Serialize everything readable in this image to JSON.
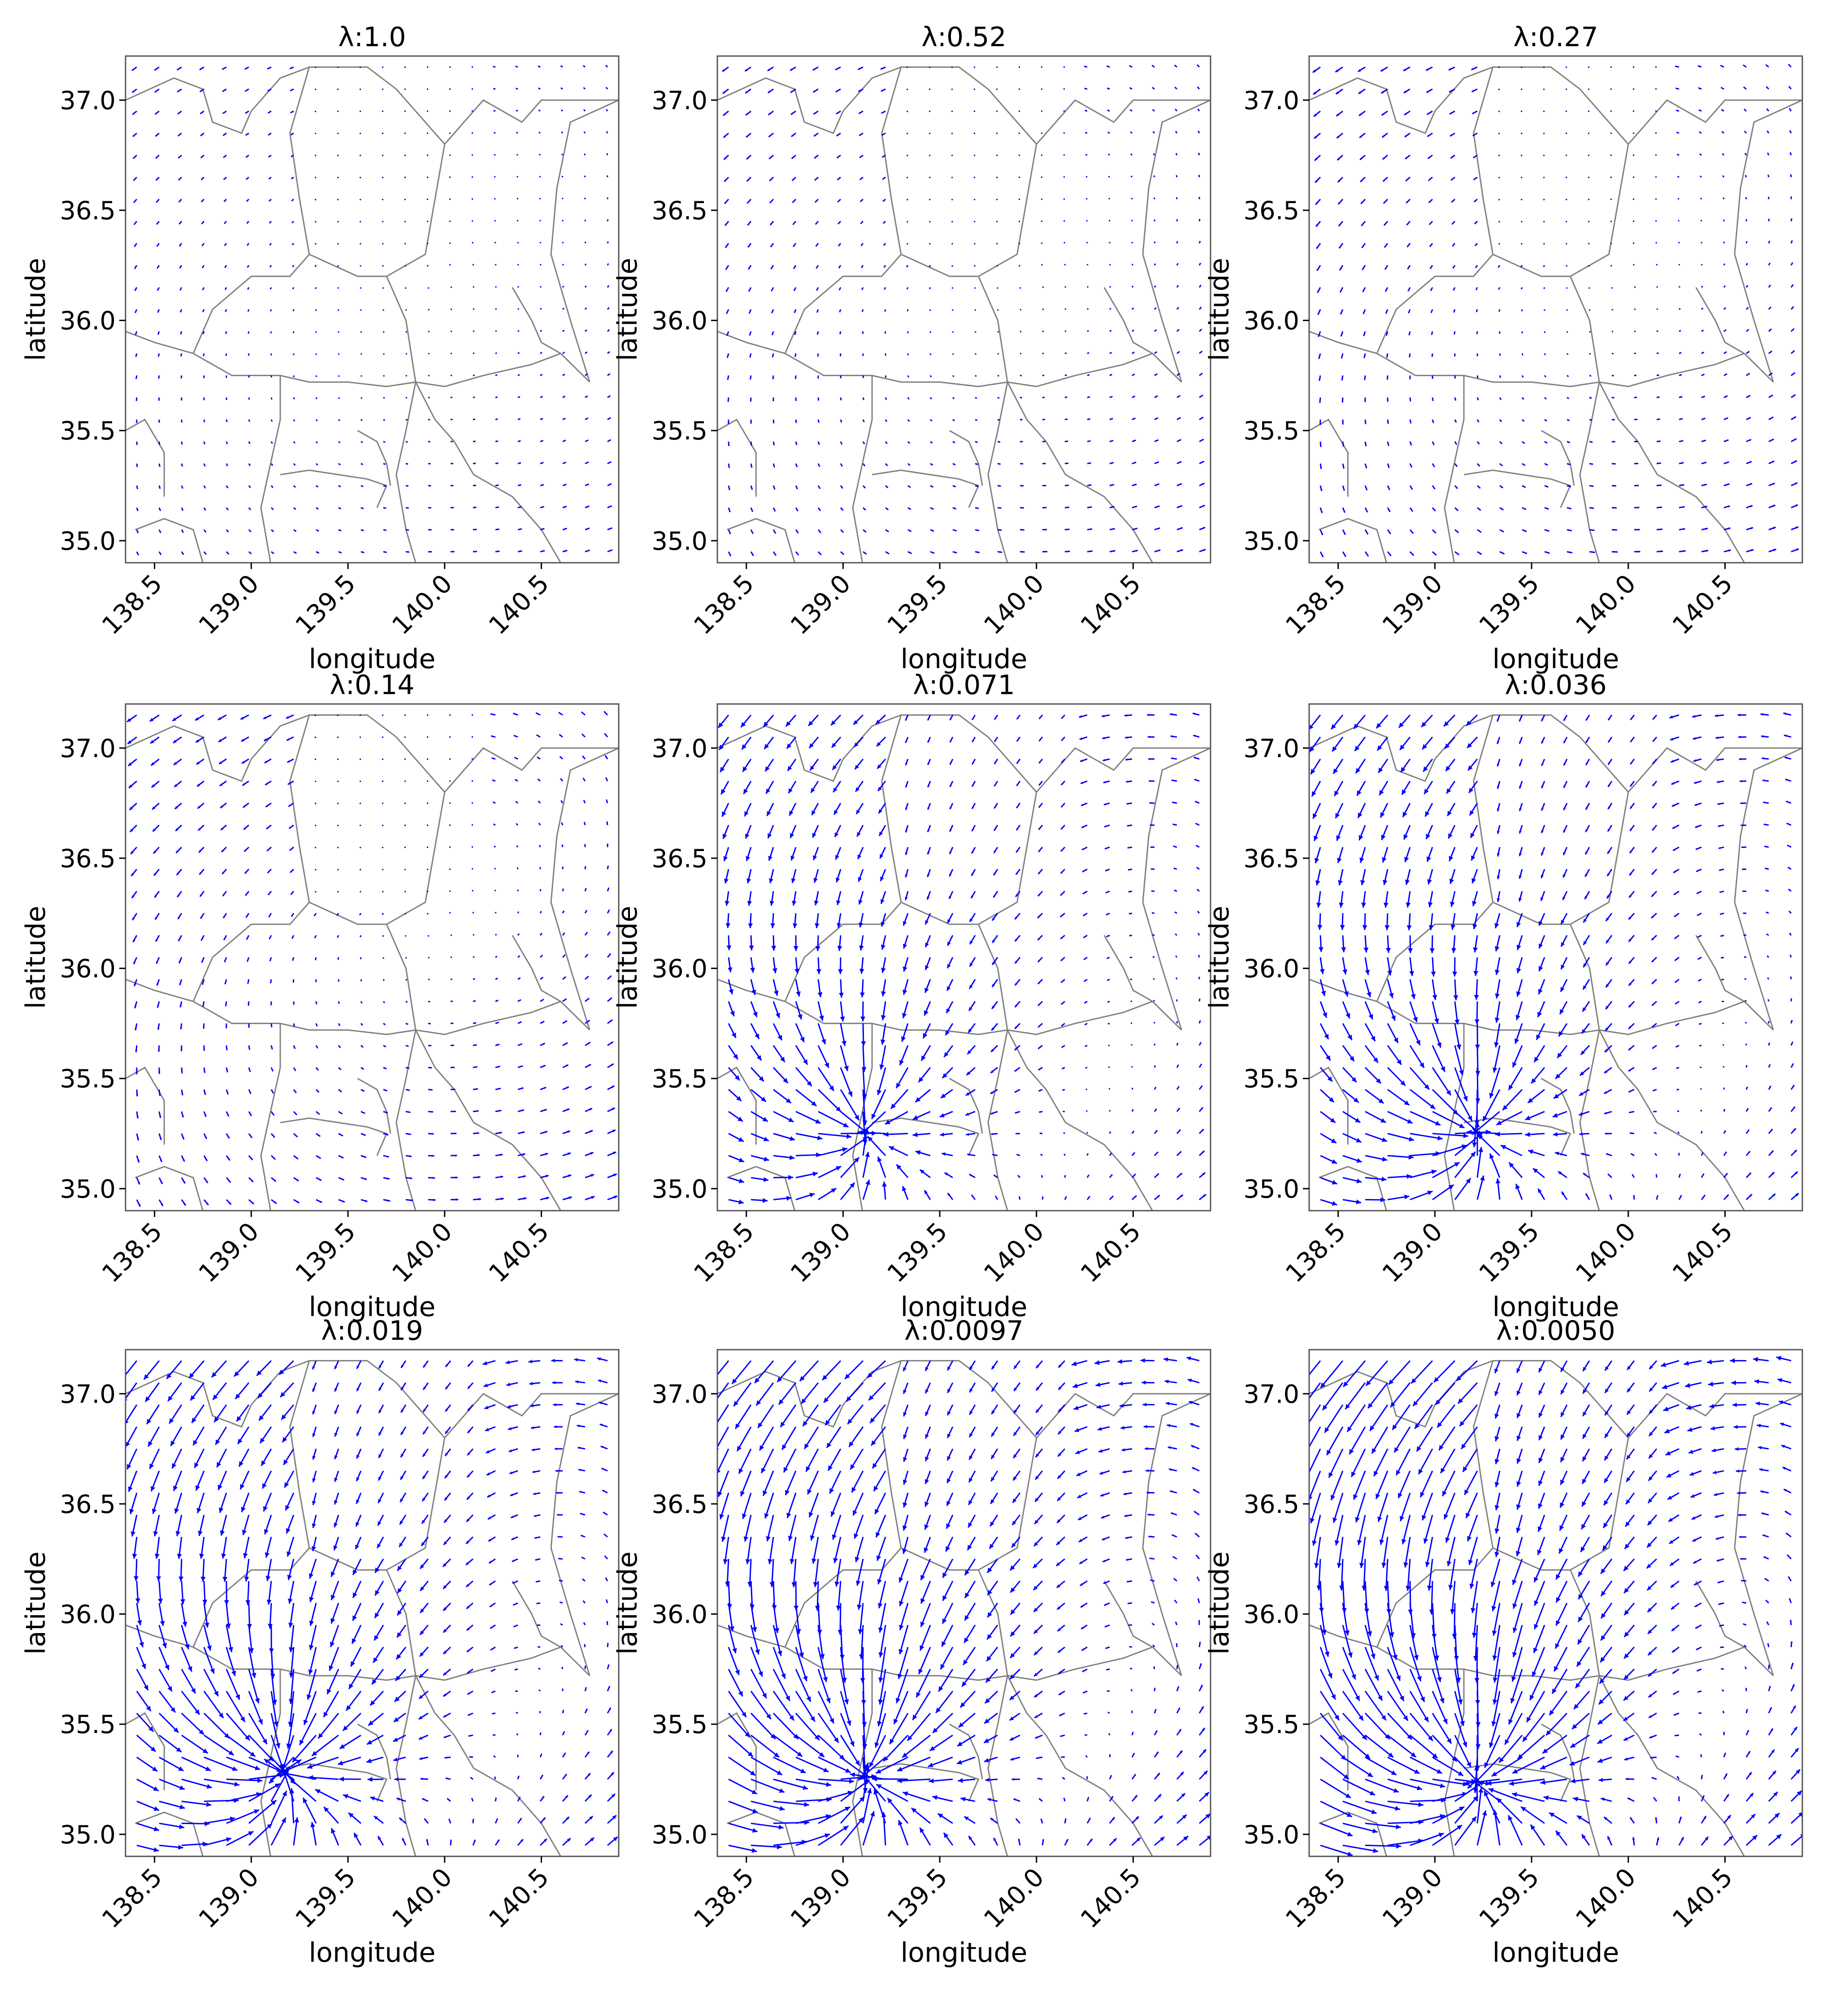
{
  "figure": {
    "xlabel": "longitude",
    "ylabel": "latitude",
    "xticks": [
      138.5,
      139.0,
      139.5,
      140.0,
      140.5
    ],
    "xtick_labels": [
      "138.5",
      "139.0",
      "139.5",
      "140.0",
      "140.5"
    ],
    "yticks": [
      35.0,
      35.5,
      36.0,
      36.5,
      37.0
    ],
    "ytick_labels": [
      "35.0",
      "35.5",
      "36.0",
      "36.5",
      "37.0"
    ],
    "xlim": [
      138.35,
      140.9
    ],
    "ylim": [
      34.9,
      37.2
    ],
    "arrow_color": "#0000ff",
    "coast_color": "#808080",
    "grid": false
  },
  "chart_data": [
    {
      "type": "quiver",
      "title": "λ:1.0",
      "lambda": 1.0,
      "source": null,
      "strength": 0.35
    },
    {
      "type": "quiver",
      "title": "λ:0.52",
      "lambda": 0.52,
      "source": null,
      "strength": 0.45
    },
    {
      "type": "quiver",
      "title": "λ:0.27",
      "lambda": 0.27,
      "source": null,
      "strength": 0.55
    },
    {
      "type": "quiver",
      "title": "λ:0.14",
      "lambda": 0.14,
      "source": null,
      "strength": 0.7
    },
    {
      "type": "quiver",
      "title": "λ:0.071",
      "lambda": 0.071,
      "source": [
        139.1,
        35.27
      ],
      "strength": 0.85
    },
    {
      "type": "quiver",
      "title": "λ:0.036",
      "lambda": 0.036,
      "source": [
        139.2,
        35.27
      ],
      "strength": 1.0
    },
    {
      "type": "quiver",
      "title": "λ:0.019",
      "lambda": 0.019,
      "source": [
        139.15,
        35.3
      ],
      "strength": 1.3
    },
    {
      "type": "quiver",
      "title": "λ:0.0097",
      "lambda": 0.0097,
      "source": [
        139.1,
        35.28
      ],
      "strength": 1.6
    },
    {
      "type": "quiver",
      "title": "λ:0.0050",
      "lambda": 0.005,
      "source": [
        139.2,
        35.25
      ],
      "strength": 1.9
    }
  ],
  "map_outline": [
    [
      [
        138.35,
        37.0
      ],
      [
        138.6,
        37.1
      ],
      [
        138.75,
        37.05
      ],
      [
        138.8,
        36.9
      ],
      [
        138.95,
        36.85
      ],
      [
        139.0,
        36.95
      ],
      [
        139.15,
        37.1
      ],
      [
        139.3,
        37.15
      ]
    ],
    [
      [
        139.3,
        37.15
      ],
      [
        139.6,
        37.15
      ],
      [
        139.75,
        37.05
      ],
      [
        139.9,
        36.9
      ],
      [
        140.0,
        36.8
      ],
      [
        139.95,
        36.55
      ],
      [
        139.9,
        36.3
      ],
      [
        139.7,
        36.2
      ],
      [
        139.55,
        36.2
      ],
      [
        139.3,
        36.3
      ],
      [
        139.25,
        36.55
      ],
      [
        139.2,
        36.85
      ],
      [
        139.3,
        37.15
      ]
    ],
    [
      [
        140.0,
        36.8
      ],
      [
        140.2,
        37.0
      ],
      [
        140.4,
        36.9
      ],
      [
        140.5,
        37.0
      ],
      [
        140.9,
        37.0
      ]
    ],
    [
      [
        138.35,
        35.95
      ],
      [
        138.5,
        35.9
      ],
      [
        138.7,
        35.85
      ],
      [
        138.9,
        35.75
      ],
      [
        139.15,
        35.75
      ],
      [
        139.3,
        35.72
      ],
      [
        139.5,
        35.72
      ],
      [
        139.7,
        35.7
      ],
      [
        139.85,
        35.72
      ]
    ],
    [
      [
        138.7,
        35.85
      ],
      [
        138.8,
        36.05
      ],
      [
        139.0,
        36.2
      ],
      [
        139.2,
        36.2
      ],
      [
        139.3,
        36.3
      ]
    ],
    [
      [
        139.85,
        35.72
      ],
      [
        140.0,
        35.7
      ],
      [
        140.2,
        35.75
      ],
      [
        140.45,
        35.8
      ],
      [
        140.6,
        35.85
      ],
      [
        140.75,
        35.72
      ]
    ],
    [
      [
        140.75,
        35.72
      ],
      [
        140.65,
        36.0
      ],
      [
        140.55,
        36.3
      ],
      [
        140.58,
        36.6
      ],
      [
        140.65,
        36.9
      ],
      [
        140.9,
        37.0
      ]
    ],
    [
      [
        139.7,
        36.2
      ],
      [
        139.8,
        36.0
      ],
      [
        139.85,
        35.72
      ],
      [
        139.8,
        35.5
      ],
      [
        139.75,
        35.3
      ],
      [
        139.8,
        35.05
      ],
      [
        139.85,
        34.9
      ]
    ],
    [
      [
        139.15,
        35.75
      ],
      [
        139.15,
        35.55
      ],
      [
        139.1,
        35.35
      ],
      [
        139.05,
        35.15
      ],
      [
        139.1,
        34.9
      ]
    ],
    [
      [
        139.15,
        35.3
      ],
      [
        139.3,
        35.32
      ],
      [
        139.45,
        35.3
      ],
      [
        139.6,
        35.28
      ],
      [
        139.7,
        35.25
      ],
      [
        139.65,
        35.15
      ]
    ],
    [
      [
        139.55,
        35.5
      ],
      [
        139.65,
        35.45
      ],
      [
        139.7,
        35.35
      ],
      [
        139.72,
        35.25
      ]
    ],
    [
      [
        139.85,
        35.72
      ],
      [
        139.95,
        35.55
      ],
      [
        140.05,
        35.45
      ],
      [
        140.15,
        35.3
      ],
      [
        140.35,
        35.2
      ],
      [
        140.5,
        35.05
      ],
      [
        140.6,
        34.9
      ]
    ],
    [
      [
        138.4,
        35.05
      ],
      [
        138.55,
        35.1
      ],
      [
        138.7,
        35.05
      ],
      [
        138.75,
        34.9
      ]
    ],
    [
      [
        140.35,
        36.15
      ],
      [
        140.45,
        36.0
      ],
      [
        140.5,
        35.9
      ],
      [
        140.6,
        35.85
      ]
    ],
    [
      [
        138.35,
        35.5
      ],
      [
        138.45,
        35.55
      ],
      [
        138.55,
        35.4
      ],
      [
        138.55,
        35.2
      ]
    ]
  ]
}
